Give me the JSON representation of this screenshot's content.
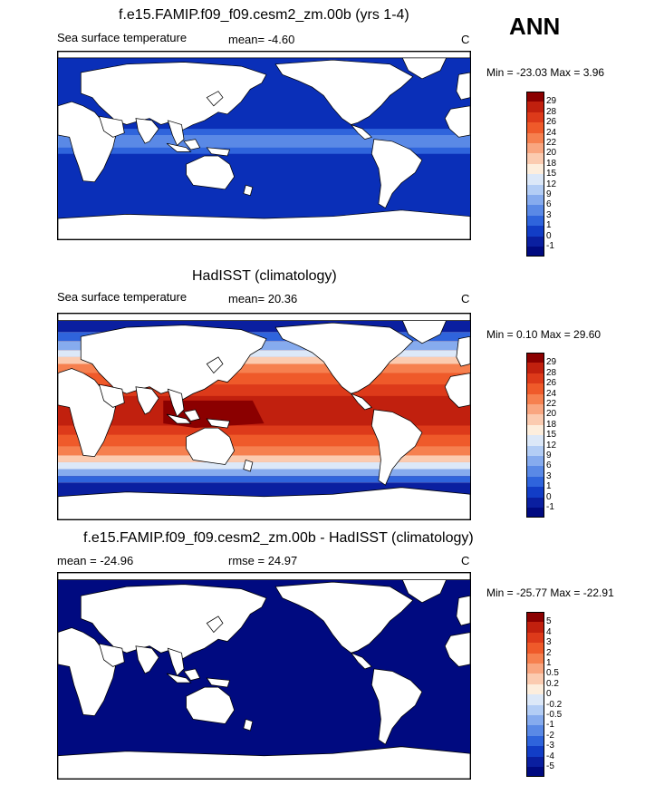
{
  "season": "ANN",
  "panels": [
    {
      "title": "f.e15.FAMIP.f09_f09.cesm2_zm.00b (yrs 1-4)",
      "left_label": "Sea surface temperature",
      "center_label": "mean=  -4.60",
      "units": "C",
      "minmax": "Min = -23.03 Max =   3.96",
      "levels": [
        "29",
        "28",
        "26",
        "24",
        "22",
        "20",
        "18",
        "15",
        "12",
        "9",
        "6",
        "3",
        "1",
        "0",
        "-1"
      ],
      "colors": [
        "#8b0000",
        "#c1200e",
        "#dd3a1a",
        "#ef5a2a",
        "#f6804f",
        "#f9a680",
        "#fbcbb0",
        "#fdeedd",
        "#dce8f8",
        "#b3cdf5",
        "#86abee",
        "#5a89e6",
        "#2f64dc",
        "#123dc6",
        "#0a1fa0",
        "#000a80"
      ],
      "ocean_fill": "#0a2fb8"
    },
    {
      "title": "HadISST (climatology)",
      "left_label": "Sea surface temperature",
      "center_label": "mean=  20.36",
      "units": "C",
      "minmax": "Min =  0.10 Max =  29.60",
      "levels": [
        "29",
        "28",
        "26",
        "24",
        "22",
        "20",
        "18",
        "15",
        "12",
        "9",
        "6",
        "3",
        "1",
        "0",
        "-1"
      ],
      "colors": [
        "#8b0000",
        "#c1200e",
        "#dd3a1a",
        "#ef5a2a",
        "#f6804f",
        "#f9a680",
        "#fbcbb0",
        "#fdeedd",
        "#dce8f8",
        "#b3cdf5",
        "#86abee",
        "#5a89e6",
        "#2f64dc",
        "#123dc6",
        "#0a1fa0",
        "#000a80"
      ],
      "ocean_fill": "#e0461f"
    },
    {
      "title": "f.e15.FAMIP.f09_f09.cesm2_zm.00b - HadISST (climatology)",
      "left_label": "mean = -24.96",
      "center_label": "rmse =  24.97",
      "units": "C",
      "minmax": "Min = -25.77 Max = -22.91",
      "levels": [
        "5",
        "4",
        "3",
        "2",
        "1",
        "0.5",
        "0.2",
        "0",
        "-0.2",
        "-0.5",
        "-1",
        "-2",
        "-3",
        "-4",
        "-5"
      ],
      "colors": [
        "#8b0000",
        "#c1200e",
        "#dd3a1a",
        "#ef5a2a",
        "#f6804f",
        "#f9a680",
        "#fbcbb0",
        "#fdeedd",
        "#dce8f8",
        "#b3cdf5",
        "#86abee",
        "#5a89e6",
        "#2f64dc",
        "#123dc6",
        "#0a1fa0",
        "#000a80"
      ],
      "ocean_fill": "#000a80"
    }
  ]
}
